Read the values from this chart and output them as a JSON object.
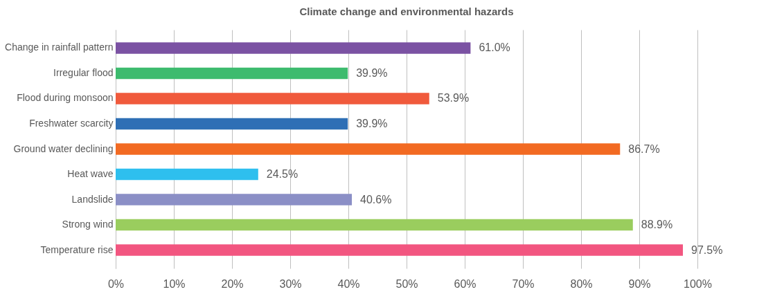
{
  "chart_data": {
    "type": "bar",
    "orientation": "horizontal",
    "title": "Climate change and environmental hazards",
    "categories": [
      "Change in rainfall pattern",
      "Irregular flood",
      "Flood during monsoon",
      "Freshwater scarcity",
      "Ground water declining",
      "Heat wave",
      "Landslide",
      "Strong wind",
      "Temperature rise"
    ],
    "values": [
      61.0,
      39.9,
      53.9,
      39.9,
      86.7,
      24.5,
      40.6,
      88.9,
      97.5
    ],
    "value_labels": [
      "61.0%",
      "39.9%",
      "53.9%",
      "39.9%",
      "86.7%",
      "24.5%",
      "40.6%",
      "88.9%",
      "97.5%"
    ],
    "colors": [
      "#7b52a3",
      "#3dbb6e",
      "#f05a3c",
      "#2f6fb5",
      "#f26a22",
      "#2ebfee",
      "#8b8fc6",
      "#9acd5e",
      "#f25680"
    ],
    "xlim": [
      0,
      100
    ],
    "xticks": [
      {
        "value": 0,
        "label": "0%"
      },
      {
        "value": 10,
        "label": "10%"
      },
      {
        "value": 20,
        "label": "20%"
      },
      {
        "value": 30,
        "label": "30%"
      },
      {
        "value": 40,
        "label": "40%"
      },
      {
        "value": 50,
        "label": "50%"
      },
      {
        "value": 60,
        "label": "60%"
      },
      {
        "value": 70,
        "label": "70%"
      },
      {
        "value": 80,
        "label": "80%"
      },
      {
        "value": 90,
        "label": "90%"
      },
      {
        "value": 100,
        "label": "100%"
      }
    ],
    "grid": "x"
  }
}
